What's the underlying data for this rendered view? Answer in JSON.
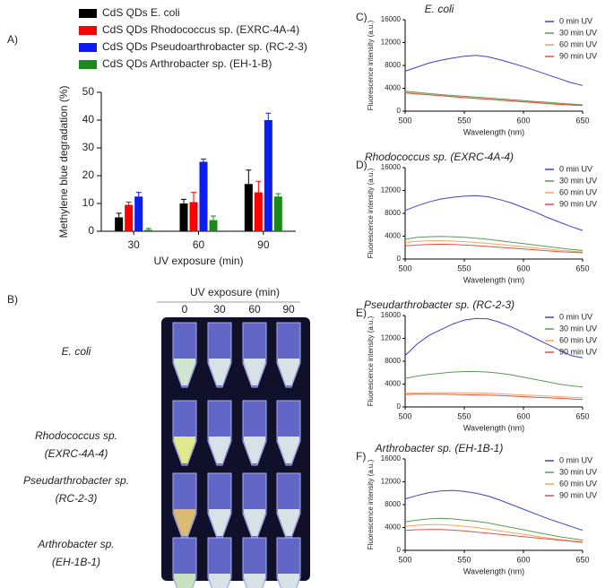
{
  "chart_data": [
    {
      "type": "bar",
      "panel_label": "A)",
      "xlabel": "UV exposure (min)",
      "ylabel": "Methylene blue degradation (%)",
      "categories": [
        "30",
        "60",
        "90"
      ],
      "ylim": [
        0,
        50
      ],
      "yticks": [
        0,
        10,
        20,
        30,
        40,
        50
      ],
      "series": [
        {
          "name": "CdS QDs E. coli",
          "color": "#000000",
          "values": [
            5,
            10,
            17
          ],
          "errors": [
            1.5,
            1.5,
            5
          ]
        },
        {
          "name": "CdS QDs Rhodococcus sp. (EXRC-4A-4)",
          "color": "#ff0000",
          "values": [
            9.5,
            10.5,
            14
          ],
          "errors": [
            1,
            3.5,
            4
          ]
        },
        {
          "name": "CdS QDs Pseudoarthrobacter sp. (RC-2-3)",
          "color": "#0a1ef0",
          "values": [
            12.5,
            25,
            40
          ],
          "errors": [
            1.5,
            1,
            2.5
          ]
        },
        {
          "name": "CdS QDs Arthrobacter sp. (EH-1-B)",
          "color": "#1a8a1a",
          "values": [
            0.5,
            4,
            12.5
          ],
          "errors": [
            0.5,
            1.5,
            1
          ]
        }
      ]
    },
    {
      "type": "line",
      "panel_label": "C)",
      "title": "E. coli",
      "xlabel": "Wavelength (nm)",
      "ylabel": "Fluorescence intensity (a.u.)",
      "x": [
        500,
        510,
        520,
        530,
        540,
        550,
        560,
        570,
        580,
        590,
        600,
        610,
        620,
        630,
        640,
        650
      ],
      "xlim": [
        500,
        650
      ],
      "xticks": [
        500,
        550,
        600,
        650
      ],
      "ylim": [
        0,
        16000
      ],
      "yticks": [
        0,
        4000,
        8000,
        12000,
        16000
      ],
      "series": [
        {
          "name": "0 min UV",
          "color": "#4040d0",
          "values": [
            7000,
            7700,
            8400,
            8900,
            9300,
            9600,
            9750,
            9500,
            9000,
            8400,
            7800,
            7100,
            6400,
            5700,
            5000,
            4500
          ]
        },
        {
          "name": "30 min UV",
          "color": "#5a9a5a",
          "values": [
            3500,
            3300,
            3100,
            2900,
            2750,
            2600,
            2450,
            2300,
            2150,
            2000,
            1850,
            1700,
            1550,
            1400,
            1250,
            1100
          ]
        },
        {
          "name": "60 min UV",
          "color": "#f4a460",
          "values": [
            3300,
            3100,
            2900,
            2700,
            2500,
            2350,
            2200,
            2050,
            1900,
            1750,
            1600,
            1450,
            1300,
            1150,
            1050,
            950
          ]
        },
        {
          "name": "90 min UV",
          "color": "#e05040",
          "values": [
            3200,
            3000,
            2850,
            2700,
            2550,
            2400,
            2250,
            2100,
            1950,
            1800,
            1650,
            1500,
            1350,
            1200,
            1100,
            1000
          ]
        }
      ]
    },
    {
      "type": "line",
      "panel_label": "D)",
      "title": "Rhodococcus  sp. (EXRC-4A-4)",
      "xlabel": "Wavelength (nm)",
      "ylabel": "Fluorescence intensity (a.u.)",
      "x": [
        500,
        510,
        520,
        530,
        540,
        550,
        560,
        570,
        580,
        590,
        600,
        610,
        620,
        630,
        640,
        650
      ],
      "xlim": [
        500,
        650
      ],
      "xticks": [
        500,
        550,
        600,
        650
      ],
      "ylim": [
        0,
        16000
      ],
      "yticks": [
        0,
        4000,
        8000,
        12000,
        16000
      ],
      "series": [
        {
          "name": "0 min UV",
          "color": "#4040d0",
          "values": [
            8500,
            9300,
            10000,
            10500,
            10800,
            11000,
            11100,
            10900,
            10400,
            9800,
            9000,
            8200,
            7300,
            6500,
            5700,
            5000
          ]
        },
        {
          "name": "30 min UV",
          "color": "#5a9a5a",
          "values": [
            3500,
            3800,
            3900,
            3950,
            3900,
            3800,
            3650,
            3450,
            3200,
            2950,
            2700,
            2450,
            2200,
            1950,
            1700,
            1500
          ]
        },
        {
          "name": "60 min UV",
          "color": "#f4a460",
          "values": [
            2900,
            3100,
            3200,
            3200,
            3150,
            3050,
            2900,
            2750,
            2550,
            2350,
            2150,
            1950,
            1750,
            1550,
            1400,
            1250
          ]
        },
        {
          "name": "90 min UV",
          "color": "#e05040",
          "values": [
            2300,
            2450,
            2550,
            2600,
            2550,
            2450,
            2350,
            2200,
            2050,
            1900,
            1750,
            1600,
            1450,
            1300,
            1200,
            1100
          ]
        }
      ]
    },
    {
      "type": "line",
      "panel_label": "E)",
      "title": "Pseudarthrobacter sp. (RC-2-3)",
      "xlabel": "Wavelength (nm)",
      "ylabel": "Fluorescence intensity (a.u.)",
      "x": [
        500,
        510,
        520,
        530,
        540,
        550,
        560,
        570,
        580,
        590,
        600,
        610,
        620,
        630,
        640,
        650
      ],
      "xlim": [
        500,
        650
      ],
      "xticks": [
        500,
        550,
        600,
        650
      ],
      "ylim": [
        0,
        16000
      ],
      "yticks": [
        0,
        4000,
        8000,
        12000,
        16000
      ],
      "series": [
        {
          "name": "0 min UV",
          "color": "#4040d0",
          "values": [
            9000,
            11000,
            12500,
            13500,
            14500,
            15200,
            15500,
            15400,
            14800,
            14000,
            13000,
            12000,
            11000,
            10000,
            9000,
            8600
          ]
        },
        {
          "name": "30 min UV",
          "color": "#5a9a5a",
          "values": [
            5000,
            5400,
            5700,
            5900,
            6100,
            6200,
            6200,
            6100,
            5900,
            5600,
            5200,
            4800,
            4400,
            4000,
            3700,
            3500
          ]
        },
        {
          "name": "60 min UV",
          "color": "#f4a460",
          "values": [
            2400,
            2450,
            2500,
            2500,
            2500,
            2500,
            2450,
            2400,
            2300,
            2200,
            2100,
            2000,
            1900,
            1800,
            1700,
            1600
          ]
        },
        {
          "name": "90 min UV",
          "color": "#e05040",
          "values": [
            2200,
            2250,
            2250,
            2250,
            2200,
            2150,
            2100,
            2050,
            2000,
            1900,
            1800,
            1700,
            1600,
            1500,
            1400,
            1300
          ]
        }
      ]
    },
    {
      "type": "line",
      "panel_label": "F)",
      "title": "Arthrobacter sp.  (EH-1B-1)",
      "xlabel": "Wavelength (nm)",
      "ylabel": "Fluorescence intensity (a.u.)",
      "x": [
        500,
        510,
        520,
        530,
        540,
        550,
        560,
        570,
        580,
        590,
        600,
        610,
        620,
        630,
        640,
        650
      ],
      "xlim": [
        500,
        650
      ],
      "xticks": [
        500,
        550,
        600,
        650
      ],
      "ylim": [
        0,
        16000
      ],
      "yticks": [
        0,
        4000,
        8000,
        12000,
        16000
      ],
      "series": [
        {
          "name": "0 min UV",
          "color": "#4040d0",
          "values": [
            9000,
            9600,
            10100,
            10400,
            10500,
            10300,
            10000,
            9500,
            8800,
            8000,
            7200,
            6400,
            5600,
            4900,
            4200,
            3500
          ]
        },
        {
          "name": "30 min UV",
          "color": "#5a9a5a",
          "values": [
            5000,
            5300,
            5500,
            5600,
            5500,
            5300,
            5100,
            4800,
            4400,
            4000,
            3600,
            3200,
            2800,
            2400,
            2100,
            1800
          ]
        },
        {
          "name": "60 min UV",
          "color": "#f4a460",
          "values": [
            4200,
            4400,
            4500,
            4500,
            4400,
            4200,
            4000,
            3700,
            3400,
            3100,
            2800,
            2500,
            2200,
            1900,
            1700,
            1500
          ]
        },
        {
          "name": "90 min UV",
          "color": "#e05040",
          "values": [
            3500,
            3600,
            3650,
            3650,
            3550,
            3400,
            3200,
            3000,
            2800,
            2600,
            2400,
            2200,
            2000,
            1800,
            1600,
            1400
          ]
        }
      ]
    }
  ],
  "panel_b": {
    "panel_label": "B)",
    "header": "UV exposure (min)",
    "columns": [
      "0",
      "30",
      "60",
      "90"
    ],
    "rows": [
      [
        "E. coli"
      ],
      [
        "Rhodococcus  sp.",
        "(EXRC-4A-4)"
      ],
      [
        "Pseudarthrobacter sp.",
        "(RC-2-3)"
      ],
      [
        "Arthrobacter sp.",
        "(EH-1B-1)"
      ]
    ]
  }
}
